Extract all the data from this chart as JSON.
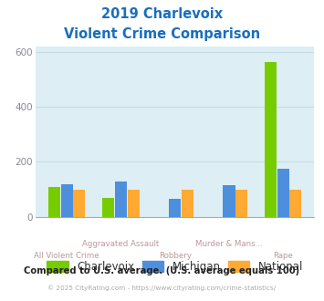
{
  "title_line1": "2019 Charlevoix",
  "title_line2": "Violent Crime Comparison",
  "categories": [
    "All Violent Crime",
    "Aggravated Assault",
    "Robbery",
    "Murder & Mans...",
    "Rape"
  ],
  "cat_labels_top": [
    "",
    "Aggravated Assault",
    "",
    "Murder & Mans...",
    ""
  ],
  "cat_labels_bot": [
    "All Violent Crime",
    "",
    "Robbery",
    "",
    "Rape"
  ],
  "charlevoix": [
    110,
    70,
    0,
    0,
    565
  ],
  "michigan": [
    120,
    130,
    65,
    115,
    175
  ],
  "national": [
    100,
    100,
    100,
    100,
    100
  ],
  "charlevoix_color": "#77cc00",
  "michigan_color": "#4d8fdd",
  "national_color": "#ffaa33",
  "bg_color": "#ddeef5",
  "ylim": [
    0,
    620
  ],
  "yticks": [
    0,
    200,
    400,
    600
  ],
  "ylabel_color": "#888899",
  "grid_color": "#c8dce6",
  "title_color": "#1a6fbb",
  "xlabel_top_color": "#bb9999",
  "xlabel_bot_color": "#bb9999",
  "legend_label_color": "#333333",
  "legend_labels": [
    "Charlevoix",
    "Michigan",
    "National"
  ],
  "footer_text": "Compared to U.S. average. (U.S. average equals 100)",
  "copyright_text": "© 2025 CityRating.com - https://www.cityrating.com/crime-statistics/",
  "footer_color": "#222222",
  "copyright_color": "#aaaaaa"
}
